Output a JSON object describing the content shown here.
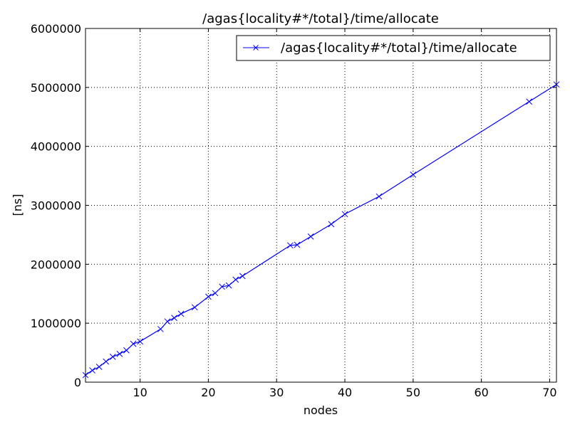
{
  "chart_data": {
    "type": "line",
    "title": "/agas{locality#*/total}/time/allocate",
    "xlabel": "nodes",
    "ylabel": "[ns]",
    "xlim": [
      2,
      71
    ],
    "ylim": [
      0,
      6000000
    ],
    "xticks": [
      10,
      20,
      30,
      40,
      50,
      60,
      70
    ],
    "yticks": [
      0,
      1000000,
      2000000,
      3000000,
      4000000,
      5000000,
      6000000
    ],
    "ytick_labels": [
      "0",
      "1000000",
      "2000000",
      "3000000",
      "4000000",
      "5000000",
      "6000000"
    ],
    "grid": true,
    "legend_position": "top-right",
    "series": [
      {
        "name": "/agas{locality#*/total}/time/allocate",
        "color": "#0000ff",
        "marker": "x",
        "x": [
          2,
          3,
          4,
          5,
          6,
          7,
          8,
          9,
          10,
          13,
          14,
          15,
          16,
          18,
          20,
          21,
          22,
          23,
          24,
          25,
          32,
          33,
          35,
          38,
          40,
          45,
          50,
          67,
          71
        ],
        "y": [
          120000,
          200000,
          260000,
          350000,
          430000,
          480000,
          540000,
          650000,
          690000,
          900000,
          1030000,
          1090000,
          1160000,
          1270000,
          1450000,
          1510000,
          1620000,
          1640000,
          1740000,
          1800000,
          2320000,
          2330000,
          2470000,
          2680000,
          2850000,
          3150000,
          3520000,
          4760000,
          5050000
        ]
      }
    ]
  }
}
